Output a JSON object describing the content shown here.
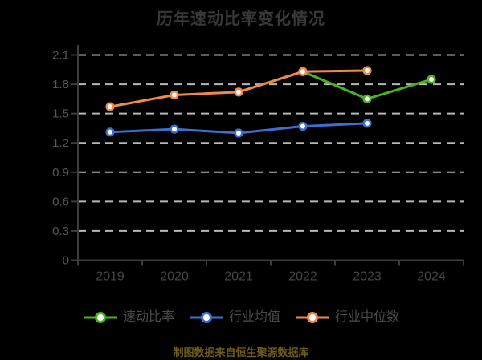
{
  "footer": {
    "note": "制图数据来自恒生聚源数据库"
  },
  "colors": {
    "background": "#000000",
    "title_text": "#383838",
    "axis_line": "#3d3d3d",
    "y_tick_label": "#565656",
    "x_tick_label": "#454545",
    "gridline": "#b7b7b7",
    "legend_text": "#4a4a4a",
    "footer_text": "#6e5b20",
    "marker_fill": "#ffffff"
  },
  "chart_data": {
    "type": "line",
    "title": "历年速动比率变化情况",
    "categories": [
      "2019",
      "2020",
      "2021",
      "2022",
      "2023",
      "2024"
    ],
    "ylim": [
      0,
      2.1
    ],
    "yticks": [
      "0",
      "0.3",
      "0.6",
      "0.9",
      "1.2",
      "1.5",
      "1.8",
      "2.1"
    ],
    "grid": "horizontal-dashed",
    "legend_position": "bottom",
    "series": [
      {
        "name": "速动比率",
        "color": "#4bb224",
        "values": [
          null,
          null,
          1.72,
          1.93,
          1.65,
          1.85
        ]
      },
      {
        "name": "行业均值",
        "color": "#3d6fd2",
        "values": [
          1.31,
          1.34,
          1.3,
          1.37,
          1.4,
          null
        ]
      },
      {
        "name": "行业中位数",
        "color": "#ee8a4a",
        "values": [
          1.57,
          1.69,
          1.72,
          1.93,
          1.94,
          null
        ]
      }
    ]
  }
}
